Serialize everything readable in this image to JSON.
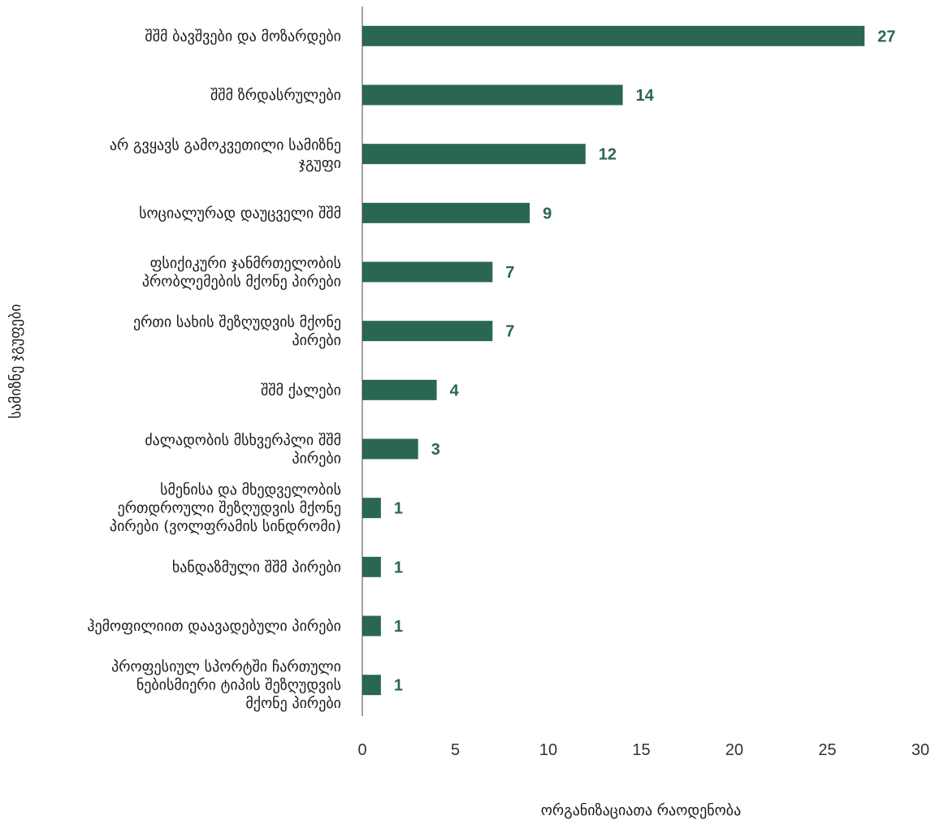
{
  "chart_data": {
    "type": "bar",
    "orientation": "horizontal",
    "xlabel": "ორგანიზაციათა რაოდენობა",
    "ylabel": "სამიზნე ჯგუფები",
    "xlim": [
      0,
      30
    ],
    "xticks": [
      0,
      5,
      10,
      15,
      20,
      25,
      30
    ],
    "grid": false,
    "bar_color": "#2a6654",
    "categories": [
      [
        "შშმ ბავშვები და მოზარდები"
      ],
      [
        "შშმ ზრდასრულები"
      ],
      [
        "არ გვყავს გამოკვეთილი სამიზნე",
        "ჯგუფი"
      ],
      [
        "სოციალურად დაუცველი შშმ"
      ],
      [
        "ფსიქიკური ჯანმრთელობის",
        "პრობლემების მქონე პირები"
      ],
      [
        "ერთი სახის შეზღუდვის მქონე",
        "პირები"
      ],
      [
        "შშმ ქალები"
      ],
      [
        "ძალადობის მსხვერპლი შშმ",
        "პირები"
      ],
      [
        "სმენისა და მხედველობის",
        "ერთდროული შეზღუდვის მქონე",
        "პირები (ვოლფრამის სინდრომი)"
      ],
      [
        "ხანდაზმული შშმ პირები"
      ],
      [
        "ჰემოფილიით დაავადებული პირები"
      ],
      [
        "პროფესიულ სპორტში ჩართული",
        "ნებისმიერი ტიპის შეზღუდვის",
        "მქონე პირები"
      ]
    ],
    "values": [
      27,
      14,
      12,
      9,
      7,
      7,
      4,
      3,
      1,
      1,
      1,
      1
    ]
  }
}
